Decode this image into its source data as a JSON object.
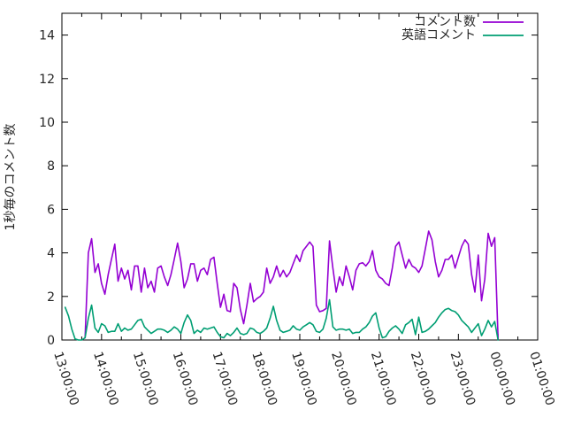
{
  "chart_data": {
    "type": "line",
    "title": "",
    "xlabel": "",
    "ylabel": "1秒毎のコメント数",
    "x_tick_labels": [
      "13:00:00",
      "14:00:00",
      "15:00:00",
      "16:00:00",
      "17:00:00",
      "18:00:00",
      "19:00:00",
      "20:00:00",
      "21:00:00",
      "22:00:00",
      "23:00:00",
      "00:00:00",
      "01:00:00"
    ],
    "x_minor_tick_interval_hours": 0.5,
    "y_ticks": [
      0,
      2,
      4,
      6,
      8,
      10,
      12,
      14
    ],
    "ylim": [
      0,
      15
    ],
    "xlim_hours": [
      0,
      12
    ],
    "grid": false,
    "legend_position": "top-right",
    "background": "#ffffff",
    "sample_interval_minutes": 5,
    "sample_start_label": "13:00:00",
    "series": [
      {
        "name": "コメント数",
        "color": "#9400d3",
        "values": [
          null,
          null,
          null,
          null,
          null,
          null,
          null,
          0.1,
          4.0,
          4.65,
          3.1,
          3.5,
          2.6,
          2.1,
          3.0,
          3.7,
          4.4,
          2.7,
          3.3,
          2.8,
          3.2,
          2.3,
          3.4,
          3.4,
          2.2,
          3.3,
          2.4,
          2.7,
          2.2,
          3.3,
          3.4,
          2.9,
          2.5,
          3.0,
          3.7,
          4.45,
          3.6,
          2.4,
          2.8,
          3.5,
          3.5,
          2.7,
          3.2,
          3.3,
          3.0,
          3.7,
          3.8,
          2.6,
          1.5,
          2.1,
          1.35,
          1.3,
          2.6,
          2.4,
          1.4,
          0.75,
          1.6,
          2.6,
          1.75,
          1.9,
          2.0,
          2.2,
          3.3,
          2.6,
          2.9,
          3.4,
          2.9,
          3.2,
          2.9,
          3.1,
          3.5,
          3.9,
          3.6,
          4.1,
          4.3,
          4.5,
          4.3,
          1.6,
          1.3,
          1.35,
          1.45,
          4.55,
          3.3,
          2.2,
          2.9,
          2.5,
          3.4,
          2.9,
          2.3,
          3.2,
          3.5,
          3.55,
          3.4,
          3.6,
          4.1,
          3.2,
          2.9,
          2.8,
          2.6,
          2.5,
          3.3,
          4.3,
          4.5,
          3.9,
          3.3,
          3.7,
          3.4,
          3.3,
          3.1,
          3.4,
          4.2,
          5.0,
          4.6,
          3.6,
          2.9,
          3.2,
          3.7,
          3.7,
          3.9,
          3.3,
          3.8,
          4.3,
          4.6,
          4.4,
          3.0,
          2.2,
          3.9,
          1.8,
          2.8,
          4.9,
          4.3,
          4.7,
          0.05
        ]
      },
      {
        "name": "英語コメント",
        "color": "#009e73",
        "values": [
          null,
          1.5,
          1.1,
          0.5,
          0.05,
          0.0,
          0.0,
          0.1,
          1.0,
          1.6,
          0.55,
          0.35,
          0.75,
          0.65,
          0.35,
          0.4,
          0.4,
          0.75,
          0.4,
          0.55,
          0.45,
          0.5,
          0.7,
          0.9,
          0.95,
          0.6,
          0.45,
          0.3,
          0.4,
          0.5,
          0.5,
          0.45,
          0.35,
          0.45,
          0.6,
          0.5,
          0.3,
          0.8,
          1.15,
          0.9,
          0.3,
          0.45,
          0.35,
          0.55,
          0.5,
          0.55,
          0.6,
          0.35,
          0.15,
          0.1,
          0.3,
          0.2,
          0.35,
          0.55,
          0.3,
          0.25,
          0.3,
          0.55,
          0.5,
          0.35,
          0.3,
          0.4,
          0.55,
          1.0,
          1.55,
          0.9,
          0.45,
          0.35,
          0.4,
          0.45,
          0.65,
          0.5,
          0.45,
          0.6,
          0.7,
          0.8,
          0.7,
          0.4,
          0.35,
          0.5,
          1.0,
          1.85,
          0.6,
          0.45,
          0.5,
          0.5,
          0.45,
          0.5,
          0.3,
          0.35,
          0.35,
          0.5,
          0.6,
          0.8,
          1.1,
          1.25,
          0.55,
          0.1,
          0.15,
          0.4,
          0.55,
          0.65,
          0.5,
          0.3,
          0.7,
          0.8,
          0.95,
          0.25,
          1.05,
          0.35,
          0.4,
          0.5,
          0.65,
          0.8,
          1.05,
          1.25,
          1.4,
          1.45,
          1.35,
          1.3,
          1.15,
          0.9,
          0.75,
          0.6,
          0.35,
          0.55,
          0.75,
          0.2,
          0.5,
          0.9,
          0.6,
          0.85,
          0.0
        ]
      }
    ]
  }
}
